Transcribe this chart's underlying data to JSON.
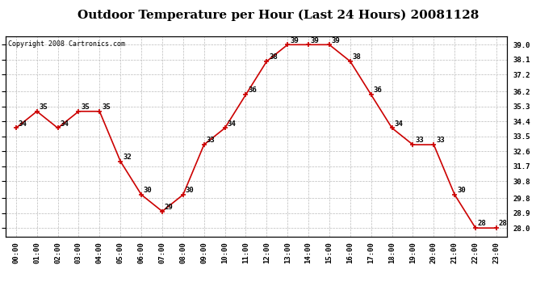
{
  "title": "Outdoor Temperature per Hour (Last 24 Hours) 20081128",
  "copyright_text": "Copyright 2008 Cartronics.com",
  "hours": [
    "00:00",
    "01:00",
    "02:00",
    "03:00",
    "04:00",
    "05:00",
    "06:00",
    "07:00",
    "08:00",
    "09:00",
    "10:00",
    "11:00",
    "12:00",
    "13:00",
    "14:00",
    "15:00",
    "16:00",
    "17:00",
    "18:00",
    "19:00",
    "20:00",
    "21:00",
    "22:00",
    "23:00"
  ],
  "temps": [
    34,
    35,
    34,
    35,
    35,
    32,
    30,
    29,
    30,
    33,
    34,
    36,
    38,
    39,
    39,
    39,
    38,
    36,
    34,
    33,
    33,
    30,
    28,
    28
  ],
  "line_color": "#cc0000",
  "marker_color": "#cc0000",
  "bg_color": "#ffffff",
  "plot_bg_color": "#ffffff",
  "grid_color": "#bbbbbb",
  "ylim_min": 27.5,
  "ylim_max": 39.5,
  "yticks": [
    28.0,
    28.9,
    29.8,
    30.8,
    31.7,
    32.6,
    33.5,
    34.4,
    35.3,
    36.2,
    37.2,
    38.1,
    39.0
  ],
  "title_fontsize": 11,
  "label_fontsize": 6.5,
  "copyright_fontsize": 6,
  "tick_fontsize": 6.5
}
